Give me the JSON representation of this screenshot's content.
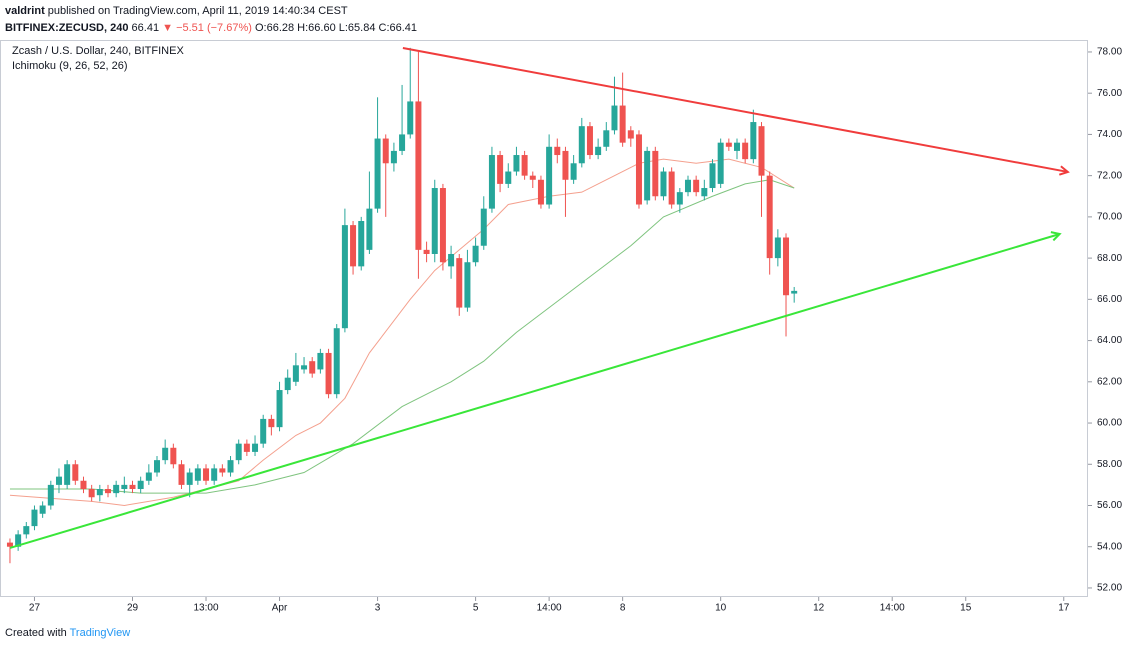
{
  "header": {
    "author": "valdrint",
    "published": "published on TradingView.com, April 11, 2019 14:40:34 CEST",
    "symbol": "BITFINEX:ZECUSD, 240",
    "last": "66.41",
    "change": "▼ −5.51 (−7.67%)",
    "ohlc": "O:66.28 H:66.60 L:65.84 C:66.41"
  },
  "chart_data": {
    "type": "candlestick",
    "title": "Zcash / U.S. Dollar, 240, BITFINEX",
    "up_color": "#26a69a",
    "down_color": "#ef5350",
    "open": [
      54.2,
      54.0,
      54.6,
      55.0,
      55.6,
      56.0,
      57.0,
      57.0,
      58.0,
      57.2,
      56.8,
      56.5,
      56.8,
      56.6,
      56.8,
      57.0,
      56.8,
      57.2,
      57.6,
      58.2,
      58.8,
      58.0,
      57.0,
      57.2,
      57.8,
      57.2,
      57.8,
      57.6,
      58.2,
      59.0,
      58.6,
      59.0,
      60.2,
      59.8,
      61.6,
      62.0,
      62.6,
      63.0,
      62.6,
      63.4,
      61.4,
      64.6,
      69.6,
      67.6,
      68.4,
      70.4,
      73.8,
      72.6,
      73.2,
      74.0,
      75.6,
      68.4,
      68.2,
      71.4,
      67.6,
      68.0,
      65.6,
      67.8,
      68.6,
      70.4,
      73.0,
      71.6,
      72.2,
      73.0,
      72.0,
      71.8,
      70.6,
      73.4,
      73.2,
      71.8,
      72.6,
      74.4,
      73.0,
      73.4,
      74.2,
      75.4,
      74.2,
      74.0,
      70.8,
      73.2,
      71.0,
      72.2,
      70.6,
      71.2,
      71.8,
      71.0,
      71.4,
      71.6,
      73.6,
      73.2,
      73.6,
      72.8,
      74.4,
      72.0,
      68.0,
      69.0,
      66.28
    ],
    "high": [
      54.4,
      54.8,
      55.2,
      56.0,
      56.2,
      57.2,
      57.8,
      58.2,
      58.2,
      57.4,
      57.0,
      57.0,
      57.0,
      57.2,
      57.4,
      57.2,
      57.4,
      58.0,
      58.4,
      59.2,
      59.0,
      58.2,
      57.8,
      58.0,
      58.0,
      58.0,
      58.0,
      58.4,
      59.2,
      59.2,
      59.4,
      60.4,
      60.4,
      62.0,
      62.6,
      63.4,
      63.2,
      63.2,
      63.6,
      63.6,
      64.8,
      70.4,
      69.8,
      70.0,
      72.2,
      75.8,
      74.0,
      73.6,
      76.4,
      78.2,
      78.0,
      68.8,
      71.8,
      71.6,
      68.6,
      68.2,
      68.4,
      69.0,
      71.0,
      73.4,
      73.2,
      72.6,
      73.4,
      73.2,
      72.2,
      72.0,
      74.0,
      73.8,
      73.4,
      73.0,
      74.8,
      74.6,
      73.8,
      74.6,
      76.8,
      77.0,
      74.4,
      74.2,
      73.4,
      73.4,
      72.4,
      72.4,
      71.4,
      72.0,
      72.0,
      71.8,
      72.8,
      73.8,
      73.8,
      73.8,
      73.8,
      75.2,
      74.6,
      72.2,
      69.4,
      69.2,
      66.6
    ],
    "low": [
      53.2,
      53.8,
      54.4,
      54.8,
      55.4,
      55.8,
      56.6,
      56.8,
      57.0,
      56.6,
      56.2,
      56.2,
      56.4,
      56.4,
      56.6,
      56.6,
      56.6,
      57.0,
      57.4,
      58.0,
      57.8,
      56.8,
      56.4,
      57.0,
      57.0,
      57.0,
      57.4,
      57.4,
      58.0,
      58.4,
      58.4,
      58.8,
      59.4,
      59.6,
      61.4,
      61.8,
      62.4,
      62.2,
      62.4,
      61.2,
      61.2,
      64.4,
      67.2,
      67.4,
      68.2,
      70.2,
      70.0,
      72.2,
      73.0,
      73.8,
      67.0,
      67.8,
      67.8,
      67.4,
      67.0,
      65.2,
      65.4,
      67.6,
      68.4,
      70.2,
      71.2,
      71.4,
      72.0,
      71.8,
      71.4,
      70.4,
      70.4,
      72.6,
      70.0,
      71.6,
      72.4,
      72.8,
      72.8,
      73.2,
      74.0,
      73.4,
      73.4,
      70.4,
      70.6,
      70.8,
      70.8,
      70.4,
      70.2,
      71.0,
      71.0,
      70.8,
      71.2,
      71.4,
      73.2,
      72.8,
      72.6,
      72.6,
      70.0,
      67.2,
      67.6,
      64.2,
      65.84
    ],
    "close": [
      54.0,
      54.6,
      55.0,
      55.8,
      56.0,
      57.0,
      57.4,
      58.0,
      57.2,
      56.8,
      56.4,
      56.8,
      56.6,
      57.0,
      57.0,
      56.8,
      57.2,
      57.6,
      58.2,
      58.8,
      58.0,
      57.0,
      57.6,
      57.8,
      57.2,
      57.8,
      57.6,
      58.2,
      59.0,
      58.6,
      59.0,
      60.2,
      59.8,
      61.6,
      62.2,
      62.8,
      62.8,
      62.4,
      63.4,
      61.4,
      64.6,
      69.6,
      67.6,
      69.8,
      70.4,
      73.8,
      72.6,
      73.2,
      74.0,
      75.6,
      68.4,
      68.2,
      71.4,
      67.8,
      68.2,
      65.6,
      67.8,
      68.6,
      70.4,
      73.0,
      71.6,
      72.2,
      73.0,
      72.0,
      71.8,
      70.6,
      73.4,
      73.0,
      71.8,
      72.6,
      74.4,
      73.0,
      73.4,
      74.2,
      75.4,
      73.6,
      73.8,
      70.6,
      73.2,
      71.0,
      72.2,
      70.6,
      71.2,
      71.8,
      71.2,
      71.4,
      72.6,
      73.6,
      73.4,
      73.6,
      72.8,
      74.6,
      72.0,
      68.0,
      69.0,
      66.2,
      66.41
    ],
    "indicator": {
      "label": "Ichimoku (9, 26, 52, 26)",
      "lines": [
        {
          "color": "#f4a08e",
          "x": [
            0,
            10,
            14,
            20,
            24,
            28,
            31,
            35,
            38,
            41,
            44,
            49,
            52,
            55,
            58,
            61,
            66,
            70,
            74,
            77,
            80,
            84,
            88,
            92,
            96
          ],
          "values": [
            56.5,
            56.2,
            56.0,
            56.4,
            56.8,
            57.2,
            58.2,
            59.4,
            60.0,
            61.2,
            63.4,
            66.0,
            67.4,
            68.4,
            69.4,
            70.6,
            71.0,
            71.2,
            72.0,
            72.6,
            72.8,
            72.6,
            72.8,
            72.4,
            71.4
          ]
        },
        {
          "color": "#7fc47f",
          "x": [
            0,
            10,
            16,
            24,
            30,
            36,
            42,
            48,
            54,
            58,
            62,
            66,
            72,
            76,
            80,
            86,
            90,
            93,
            96
          ],
          "values": [
            56.8,
            56.8,
            56.6,
            56.6,
            57.0,
            57.6,
            59.0,
            60.8,
            62.0,
            63.0,
            64.4,
            65.6,
            67.4,
            68.6,
            70.0,
            71.0,
            71.6,
            71.8,
            71.4
          ]
        }
      ]
    },
    "trend_lines": [
      {
        "color": "#f03c3c",
        "x": [
          48.1,
          129.5
        ],
        "values": [
          78.19,
          72.18
        ]
      },
      {
        "color": "#39e639",
        "x": [
          0,
          128.5
        ],
        "values": [
          53.94,
          69.17
        ]
      }
    ],
    "xlim": [
      -1.22,
      131.6
    ],
    "xticks": [
      {
        "value": 3,
        "label": "27"
      },
      {
        "value": 15,
        "label": "29"
      },
      {
        "value": 24,
        "label": "13:00"
      },
      {
        "value": 33,
        "label": "Apr"
      },
      {
        "value": 45,
        "label": "3"
      },
      {
        "value": 57,
        "label": "5"
      },
      {
        "value": 66,
        "label": "14:00"
      },
      {
        "value": 75,
        "label": "8"
      },
      {
        "value": 87,
        "label": "10"
      },
      {
        "value": 99,
        "label": "12"
      },
      {
        "value": 108,
        "label": "14:00"
      },
      {
        "value": 117,
        "label": "15"
      },
      {
        "value": 129,
        "label": "17"
      }
    ],
    "ylim": [
      51.61,
      78.58
    ],
    "yticks": [
      {
        "value": 52,
        "label": "52.00"
      },
      {
        "value": 54,
        "label": "54.00"
      },
      {
        "value": 56,
        "label": "56.00"
      },
      {
        "value": 58,
        "label": "58.00"
      },
      {
        "value": 60,
        "label": "60.00"
      },
      {
        "value": 62,
        "label": "62.00"
      },
      {
        "value": 64,
        "label": "64.00"
      },
      {
        "value": 66,
        "label": "66.00"
      },
      {
        "value": 68,
        "label": "68.00"
      },
      {
        "value": 70,
        "label": "70.00"
      },
      {
        "value": 72,
        "label": "72.00"
      },
      {
        "value": 74,
        "label": "74.00"
      },
      {
        "value": 76,
        "label": "76.00"
      },
      {
        "value": 78,
        "label": "78.00"
      }
    ],
    "grid": false
  },
  "footer": {
    "created": "Created with",
    "brand": "TradingView"
  }
}
